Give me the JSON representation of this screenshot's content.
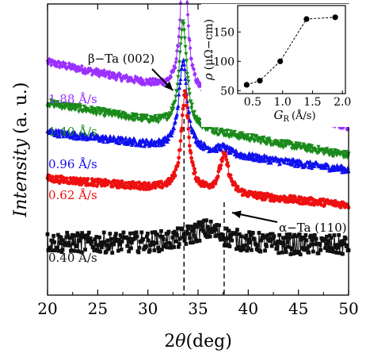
{
  "chart_data": [
    {
      "type": "scatter",
      "xlabel_prefix": "2",
      "xlabel_symbol": "θ",
      "xlabel_unit": "(deg)",
      "ylabel": "Intensity",
      "ylabel_unit": "(a. u.)",
      "xlim": [
        20,
        50
      ],
      "x_ticks": [
        20,
        25,
        30,
        35,
        40,
        45,
        50
      ],
      "y_ticks_shown": false,
      "series": [
        {
          "name": "1.88 Å/s",
          "color": "#9b30ff",
          "marker": "diamond",
          "baseline_start": 0.8,
          "baseline_end": 0.58,
          "peaks": [
            {
              "x": 33.6,
              "height": 0.5,
              "width": 0.4
            },
            {
              "x": 37.5,
              "height": 0.0,
              "width": 0.6
            }
          ]
        },
        {
          "name": "1.40 Å/s",
          "color": "#1a8a1a",
          "marker": "triangle-down",
          "baseline_start": 0.66,
          "baseline_end": 0.48,
          "peaks": [
            {
              "x": 33.5,
              "height": 0.36,
              "width": 0.45
            },
            {
              "x": 37.5,
              "height": 0.0,
              "width": 0.6
            }
          ]
        },
        {
          "name": "0.96 Å/s",
          "color": "#1010ee",
          "marker": "triangle-up",
          "baseline_start": 0.56,
          "baseline_end": 0.43,
          "peaks": [
            {
              "x": 33.5,
              "height": 0.3,
              "width": 0.5
            },
            {
              "x": 37.5,
              "height": 0.02,
              "width": 0.7
            }
          ]
        },
        {
          "name": "0.62 Å/s",
          "color": "#ee1111",
          "marker": "circle",
          "baseline_start": 0.4,
          "baseline_end": 0.31,
          "peaks": [
            {
              "x": 33.7,
              "height": 0.33,
              "width": 0.45
            },
            {
              "x": 37.6,
              "height": 0.13,
              "width": 0.55
            }
          ]
        },
        {
          "name": "0.40 Å/s",
          "color": "#111111",
          "marker": "square",
          "baseline_start": 0.18,
          "baseline_end": 0.17,
          "peaks": [
            {
              "x": 35.8,
              "height": 0.05,
              "width": 2.2
            }
          ]
        }
      ],
      "annotations": [
        {
          "text": "β−Ta (002)",
          "x": 33.6
        },
        {
          "text": "α−Ta (110)",
          "x": 37.6
        }
      ]
    },
    {
      "type": "line",
      "inset": true,
      "xlabel_symbol": "G",
      "xlabel_subscript": "R",
      "xlabel_unit": "(Å/s)",
      "ylabel_symbol": "ρ",
      "ylabel_unit": "(μΩ−cm)",
      "xlim": [
        0.25,
        2.05
      ],
      "ylim": [
        45,
        195
      ],
      "x_ticks": [
        0.5,
        1.0,
        1.5,
        2.0
      ],
      "y_ticks": [
        50,
        100,
        150
      ],
      "x": [
        0.4,
        0.62,
        0.96,
        1.4,
        1.88
      ],
      "y": [
        60,
        67,
        100,
        172,
        175
      ],
      "line_style": "dashed"
    }
  ]
}
